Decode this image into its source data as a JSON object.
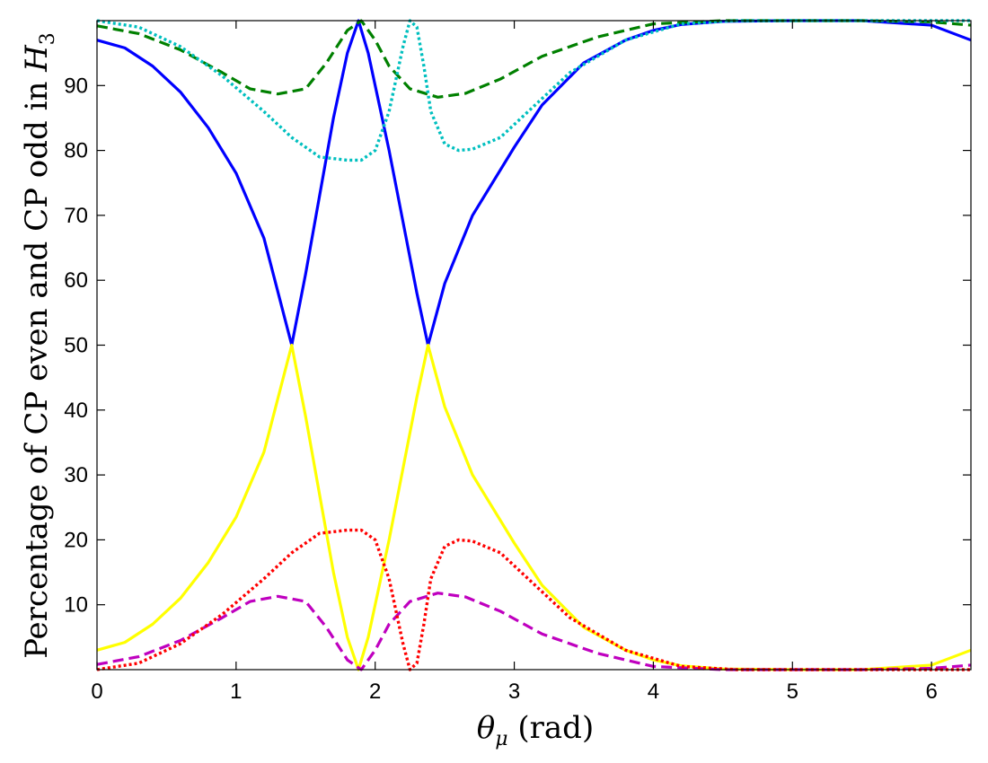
{
  "chart_data": {
    "type": "line",
    "title": "",
    "xlabel": {
      "symbol": "θ",
      "subscript": "μ",
      "unit": " (rad)"
    },
    "ylabel": {
      "text": "Percentage of CP even and CP odd in ",
      "symbol": "H",
      "subscript": "3"
    },
    "xlim": [
      0,
      6.2832
    ],
    "ylim": [
      0,
      100
    ],
    "grid": false,
    "legend": "none",
    "x_ticks": [
      0,
      1,
      2,
      3,
      4,
      5,
      6
    ],
    "x_tick_labels": [
      "0",
      "1",
      "2",
      "3",
      "4",
      "5",
      "6"
    ],
    "y_ticks": [
      10,
      20,
      30,
      40,
      50,
      60,
      70,
      80,
      90
    ],
    "y_tick_labels": [
      "10",
      "20",
      "30",
      "40",
      "50",
      "60",
      "70",
      "80",
      "90"
    ],
    "series": [
      {
        "color": "#0000ff",
        "style": "solid",
        "x": [
          0,
          0.2,
          0.4,
          0.6,
          0.8,
          1.0,
          1.2,
          1.4,
          1.5,
          1.6,
          1.7,
          1.8,
          1.88,
          1.95,
          2.0,
          2.1,
          2.2,
          2.3,
          2.38,
          2.5,
          2.7,
          3.0,
          3.2,
          3.5,
          3.8,
          4.0,
          4.2,
          4.5,
          5.0,
          5.5,
          6.0,
          6.2832
        ],
        "y": [
          97,
          95.8,
          93,
          89,
          83.5,
          76.5,
          66.5,
          50,
          61,
          73,
          85,
          95,
          100,
          95,
          90,
          80,
          69,
          58,
          50,
          59.5,
          70,
          80.5,
          87,
          93.5,
          97,
          98.5,
          99.4,
          99.9,
          100,
          100,
          99.3,
          97
        ]
      },
      {
        "color": "#ffff00",
        "style": "solid",
        "x": [
          0,
          0.2,
          0.4,
          0.6,
          0.8,
          1.0,
          1.2,
          1.4,
          1.5,
          1.6,
          1.7,
          1.8,
          1.88,
          1.95,
          2.0,
          2.1,
          2.2,
          2.3,
          2.38,
          2.5,
          2.7,
          3.0,
          3.2,
          3.5,
          3.8,
          4.0,
          4.2,
          4.5,
          5.0,
          5.5,
          6.0,
          6.2832
        ],
        "y": [
          3,
          4.2,
          7,
          11,
          16.5,
          23.5,
          33.5,
          50,
          39,
          27,
          15,
          5,
          0,
          5,
          10,
          20,
          31,
          42,
          50,
          40.5,
          30,
          19.5,
          13,
          6.5,
          3,
          1.5,
          0.6,
          0.1,
          0,
          0,
          0.7,
          3
        ]
      },
      {
        "color": "#008000",
        "style": "dashed",
        "x": [
          0,
          0.3,
          0.6,
          0.9,
          1.1,
          1.3,
          1.5,
          1.65,
          1.8,
          1.9,
          2.0,
          2.1,
          2.25,
          2.45,
          2.65,
          2.9,
          3.2,
          3.6,
          4.0,
          4.5,
          5.0,
          5.5,
          6.0,
          6.2832
        ],
        "y": [
          99.2,
          98,
          95.5,
          92,
          89.5,
          88.7,
          89.5,
          93.5,
          98.5,
          100,
          97,
          93,
          89.5,
          88.2,
          88.8,
          91,
          94.5,
          97.5,
          99.5,
          100,
          100,
          100,
          99.8,
          99.3
        ]
      },
      {
        "color": "#bf00bf",
        "style": "dashed",
        "x": [
          0,
          0.3,
          0.6,
          0.9,
          1.1,
          1.3,
          1.5,
          1.65,
          1.8,
          1.9,
          2.0,
          2.1,
          2.25,
          2.45,
          2.65,
          2.9,
          3.2,
          3.6,
          4.0,
          4.5,
          5.0,
          5.5,
          6.0,
          6.2832
        ],
        "y": [
          0.8,
          2,
          4.5,
          8,
          10.5,
          11.3,
          10.5,
          6.5,
          1.5,
          0,
          3,
          7,
          10.5,
          11.8,
          11.2,
          9,
          5.5,
          2.5,
          0.5,
          0,
          0,
          0,
          0.2,
          0.7
        ]
      },
      {
        "color": "#00bfbf",
        "style": "dotted",
        "x": [
          0,
          0.3,
          0.6,
          0.9,
          1.2,
          1.4,
          1.6,
          1.8,
          1.9,
          2.0,
          2.1,
          2.2,
          2.25,
          2.3,
          2.35,
          2.4,
          2.5,
          2.6,
          2.7,
          2.9,
          3.1,
          3.4,
          3.8,
          4.2,
          4.6,
          5.0,
          5.5,
          6.0,
          6.2832
        ],
        "y": [
          100,
          99,
          96,
          91.5,
          86,
          82,
          79,
          78.5,
          78.5,
          80,
          86,
          96,
          100,
          99,
          93,
          86,
          81,
          80,
          80.2,
          82,
          86,
          92,
          97,
          99.5,
          100,
          100,
          100,
          100,
          100
        ]
      },
      {
        "color": "#ff0000",
        "style": "dotted",
        "x": [
          0,
          0.3,
          0.6,
          0.9,
          1.2,
          1.4,
          1.6,
          1.8,
          1.9,
          2.0,
          2.1,
          2.2,
          2.25,
          2.3,
          2.35,
          2.4,
          2.5,
          2.6,
          2.7,
          2.9,
          3.1,
          3.4,
          3.8,
          4.2,
          4.6,
          5.0,
          5.5,
          6.0,
          6.2832
        ],
        "y": [
          0,
          1,
          4,
          8.5,
          14,
          18,
          21,
          21.5,
          21.5,
          20,
          14,
          4,
          0,
          1,
          7,
          14,
          19,
          20,
          19.8,
          18,
          14,
          8,
          3,
          0.5,
          0,
          0,
          0,
          0,
          0
        ]
      }
    ]
  }
}
